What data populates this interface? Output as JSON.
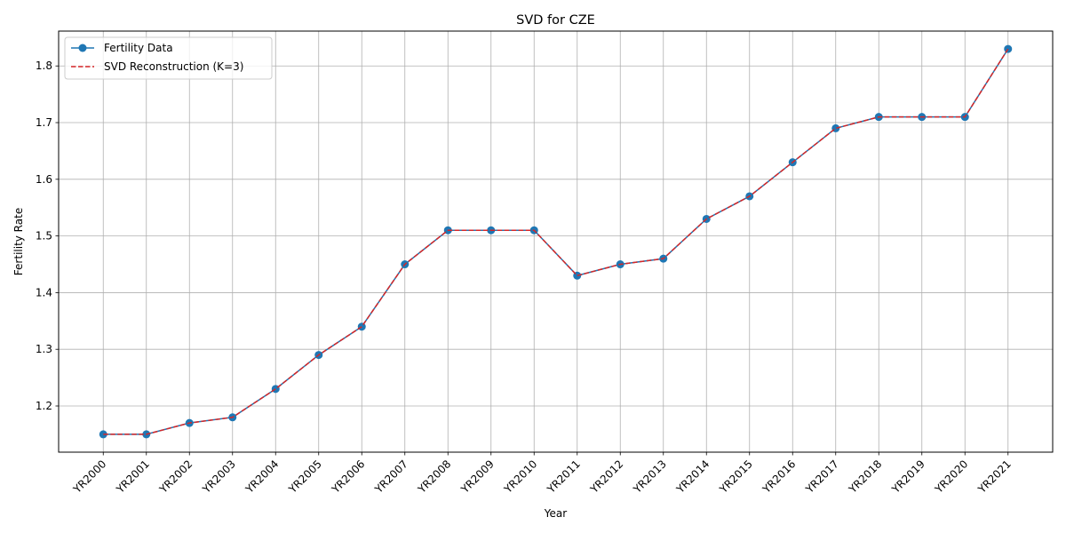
{
  "chart_data": {
    "type": "line",
    "title": "SVD for CZE",
    "xlabel": "Year",
    "ylabel": "Fertility Rate",
    "categories": [
      "YR2000",
      "YR2001",
      "YR2002",
      "YR2003",
      "YR2004",
      "YR2005",
      "YR2006",
      "YR2007",
      "YR2008",
      "YR2009",
      "YR2010",
      "YR2011",
      "YR2012",
      "YR2013",
      "YR2014",
      "YR2015",
      "YR2016",
      "YR2017",
      "YR2018",
      "YR2019",
      "YR2020",
      "YR2021"
    ],
    "series": [
      {
        "name": "Fertility Data",
        "color": "#1f77b4",
        "style": "solid-with-circle-markers",
        "values": [
          1.15,
          1.15,
          1.17,
          1.18,
          1.23,
          1.29,
          1.34,
          1.45,
          1.51,
          1.51,
          1.51,
          1.43,
          1.45,
          1.46,
          1.53,
          1.57,
          1.63,
          1.69,
          1.71,
          1.71,
          1.71,
          1.83
        ]
      },
      {
        "name": "SVD Reconstruction (K=3)",
        "color": "#d62728",
        "style": "dashed",
        "values": [
          1.15,
          1.15,
          1.17,
          1.18,
          1.23,
          1.29,
          1.34,
          1.45,
          1.51,
          1.51,
          1.51,
          1.43,
          1.45,
          1.46,
          1.53,
          1.57,
          1.63,
          1.69,
          1.71,
          1.71,
          1.71,
          1.83
        ]
      }
    ],
    "yticks": [
      "1.2",
      "1.3",
      "1.4",
      "1.5",
      "1.6",
      "1.7",
      "1.8"
    ],
    "ylim": [
      1.1185,
      1.8615
    ],
    "grid": true,
    "legend_position": "top-left"
  }
}
